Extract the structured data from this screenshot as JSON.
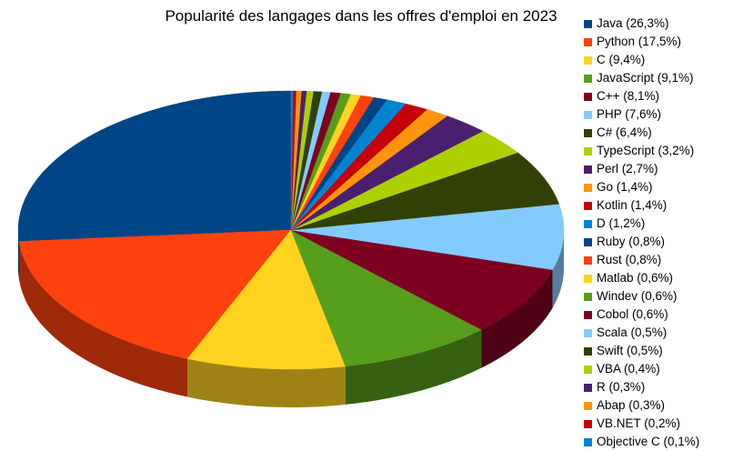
{
  "chart_data": {
    "type": "pie",
    "title": "Popularité des langages dans les offres d'emploi en 2023",
    "legend_position": "right",
    "slices": [
      {
        "label": "Java (26,3%)",
        "name": "Java",
        "value": 26.3,
        "color": "#004586"
      },
      {
        "label": "Python (17,5%)",
        "name": "Python",
        "value": 17.5,
        "color": "#ff420e"
      },
      {
        "label": "C (9,4%)",
        "name": "C",
        "value": 9.4,
        "color": "#ffd320"
      },
      {
        "label": "JavaScript (9,1%)",
        "name": "JavaScript",
        "value": 9.1,
        "color": "#579d1c"
      },
      {
        "label": "C++ (8,1%)",
        "name": "C++",
        "value": 8.1,
        "color": "#7e0021"
      },
      {
        "label": "PHP (7,6%)",
        "name": "PHP",
        "value": 7.6,
        "color": "#83caff"
      },
      {
        "label": "C# (6,4%)",
        "name": "C#",
        "value": 6.4,
        "color": "#314004"
      },
      {
        "label": "TypeScript (3,2%)",
        "name": "TypeScript",
        "value": 3.2,
        "color": "#aecf00"
      },
      {
        "label": "Perl (2,7%)",
        "name": "Perl",
        "value": 2.7,
        "color": "#4b1f6f"
      },
      {
        "label": "Go (1,4%)",
        "name": "Go",
        "value": 1.4,
        "color": "#ff950e"
      },
      {
        "label": "Kotlin (1,4%)",
        "name": "Kotlin",
        "value": 1.4,
        "color": "#c5000b"
      },
      {
        "label": "D (1,2%)",
        "name": "D",
        "value": 1.2,
        "color": "#0084d1"
      },
      {
        "label": "Ruby (0,8%)",
        "name": "Ruby",
        "value": 0.8,
        "color": "#004586"
      },
      {
        "label": "Rust (0,8%)",
        "name": "Rust",
        "value": 0.8,
        "color": "#ff420e"
      },
      {
        "label": "Matlab (0,6%)",
        "name": "Matlab",
        "value": 0.6,
        "color": "#ffd320"
      },
      {
        "label": "Windev (0,6%)",
        "name": "Windev",
        "value": 0.6,
        "color": "#579d1c"
      },
      {
        "label": "Cobol (0,6%)",
        "name": "Cobol",
        "value": 0.6,
        "color": "#7e0021"
      },
      {
        "label": "Scala (0,5%)",
        "name": "Scala",
        "value": 0.5,
        "color": "#83caff"
      },
      {
        "label": "Swift (0,5%)",
        "name": "Swift",
        "value": 0.5,
        "color": "#314004"
      },
      {
        "label": "VBA (0,4%)",
        "name": "VBA",
        "value": 0.4,
        "color": "#aecf00"
      },
      {
        "label": "R (0,3%)",
        "name": "R",
        "value": 0.3,
        "color": "#4b1f6f"
      },
      {
        "label": "Abap (0,3%)",
        "name": "Abap",
        "value": 0.3,
        "color": "#ff950e"
      },
      {
        "label": "VB.NET (0,2%)",
        "name": "VB.NET",
        "value": 0.2,
        "color": "#c5000b"
      },
      {
        "label": "Objective C (0,1%)",
        "name": "Objective C",
        "value": 0.1,
        "color": "#0084d1"
      }
    ]
  }
}
